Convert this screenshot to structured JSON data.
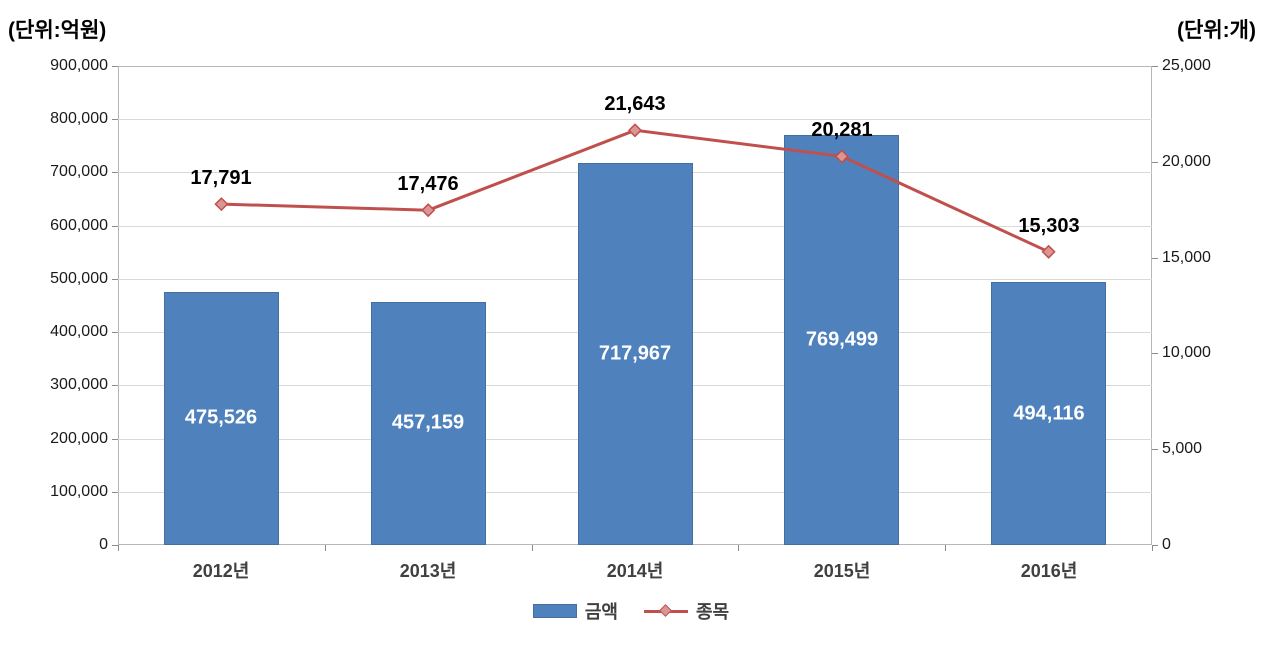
{
  "chart_data": {
    "type": "bar",
    "subtype": "bar-line-combo",
    "title": "",
    "categories": [
      "2012년",
      "2013년",
      "2014년",
      "2015년",
      "2016년"
    ],
    "series": [
      {
        "name": "금액",
        "type": "bar",
        "axis": "left",
        "color": "#4f81bd",
        "values": [
          475526,
          457159,
          717967,
          769499,
          494116
        ],
        "labels": [
          "475,526",
          "457,159",
          "717,967",
          "769,499",
          "494,116"
        ]
      },
      {
        "name": "종목",
        "type": "line",
        "axis": "right",
        "color": "#c0504d",
        "marker": "diamond",
        "marker_fill": "#d99694",
        "values": [
          17791,
          17476,
          21643,
          20281,
          15303
        ],
        "labels": [
          "17,791",
          "17,476",
          "21,643",
          "20,281",
          "15,303"
        ]
      }
    ],
    "left_axis": {
      "unit_label": "(단위:억원)",
      "min": 0,
      "max": 900000,
      "step": 100000
    },
    "right_axis": {
      "unit_label": "(단위:개)",
      "min": 0,
      "max": 25000,
      "step": 5000
    },
    "grid": true,
    "legend_position": "bottom",
    "legend": [
      "금액",
      "종목"
    ]
  }
}
